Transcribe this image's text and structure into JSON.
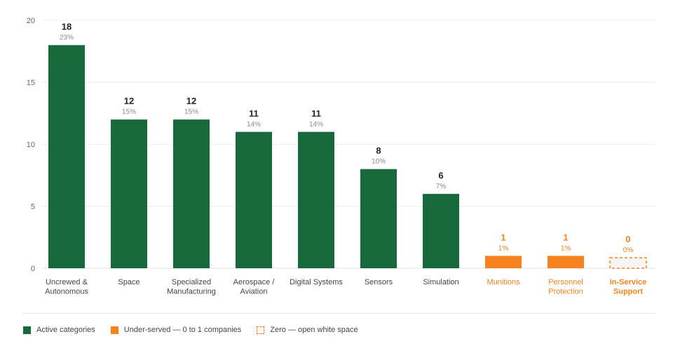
{
  "colors": {
    "active": "#17683b",
    "underserved": "#f5821f",
    "zero_fill": "#f5f5f5",
    "value_text": "#222222",
    "pct_text": "#888888",
    "label_text": "#444444"
  },
  "legend": {
    "active": "Active categories",
    "underserved": "Under-served — 0 to 1 companies",
    "zero": "Zero — open white space"
  },
  "chart_data": {
    "type": "bar",
    "ylim": [
      0,
      20
    ],
    "yticks": [
      0,
      5,
      10,
      15,
      20
    ],
    "grid": true,
    "legend_position": "bottom-left",
    "categories": [
      [
        "Uncrewed &",
        "Autonomous"
      ],
      [
        "Space"
      ],
      [
        "Specialized",
        "Manufacturing"
      ],
      [
        "Aerospace /",
        "Aviation"
      ],
      [
        "Digital Systems"
      ],
      [
        "Sensors"
      ],
      [
        "Simulation"
      ],
      [
        "Munitions"
      ],
      [
        "Personnel",
        "Protection"
      ],
      [
        "In-Service",
        "Support"
      ]
    ],
    "values": [
      18,
      12,
      12,
      11,
      11,
      8,
      6,
      1,
      1,
      0
    ],
    "percents": [
      "23%",
      "15%",
      "15%",
      "14%",
      "14%",
      "10%",
      "7%",
      "1%",
      "1%",
      "0%"
    ],
    "status": [
      "active",
      "active",
      "active",
      "active",
      "active",
      "active",
      "active",
      "underserved",
      "underserved",
      "zero"
    ]
  }
}
